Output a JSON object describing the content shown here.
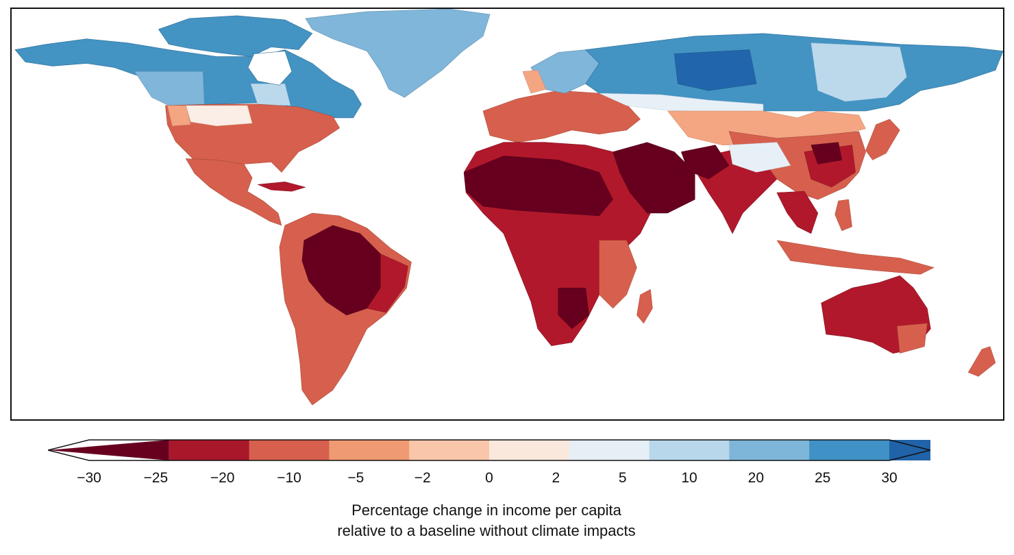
{
  "map": {
    "description_regions": [
      {
        "name": "north-america",
        "class": "mixed"
      },
      {
        "name": "south-america",
        "class": "loss"
      },
      {
        "name": "africa",
        "class": "loss"
      },
      {
        "name": "europe",
        "class": "loss"
      },
      {
        "name": "asia",
        "class": "mixed"
      },
      {
        "name": "australia",
        "class": "loss"
      },
      {
        "name": "greenland",
        "class": "gain"
      }
    ],
    "colors": {
      "c_lt_m25": "#67001f",
      "c_m25_m20": "#b2182b",
      "c_m20_m10": "#d6604d",
      "c_m10_m5": "#f4a582",
      "c_m5_m2": "#fddbc7",
      "c_m2_0": "#fbeee6",
      "c_0_2": "#e8f0f7",
      "c_2_5": "#bcd9ec",
      "c_5_10": "#7fb6d9",
      "c_10_20": "#4393c3",
      "c_20_25": "#2166ac",
      "c_gt_25": "#08306b"
    }
  },
  "legend": {
    "bins": [
      {
        "from": -30,
        "to": -25,
        "color": "#67001f"
      },
      {
        "from": -25,
        "to": -20,
        "color": "#a9172b"
      },
      {
        "from": -20,
        "to": -10,
        "color": "#d6604d"
      },
      {
        "from": -10,
        "to": -5,
        "color": "#ef9a72"
      },
      {
        "from": -5,
        "to": -2,
        "color": "#f9c6aa"
      },
      {
        "from": -2,
        "to": 0,
        "color": "#fbe8dd"
      },
      {
        "from": 0,
        "to": 2,
        "color": "#e6eff6"
      },
      {
        "from": 2,
        "to": 5,
        "color": "#b8d7ea"
      },
      {
        "from": 5,
        "to": 10,
        "color": "#7db6d8"
      },
      {
        "from": 10,
        "to": 20,
        "color": "#4091c5"
      },
      {
        "from": 20,
        "to": 25,
        "color": "#2063a8"
      },
      {
        "from": 25,
        "to": 30,
        "color": "#08306b"
      }
    ],
    "ticks": [
      "−30",
      "−25",
      "−20",
      "−10",
      "−5",
      "−2",
      "0",
      "2",
      "5",
      "10",
      "20",
      "25",
      "30"
    ],
    "title_line1": "Percentage change in income per capita",
    "title_line2": "relative to a baseline without climate impacts"
  }
}
